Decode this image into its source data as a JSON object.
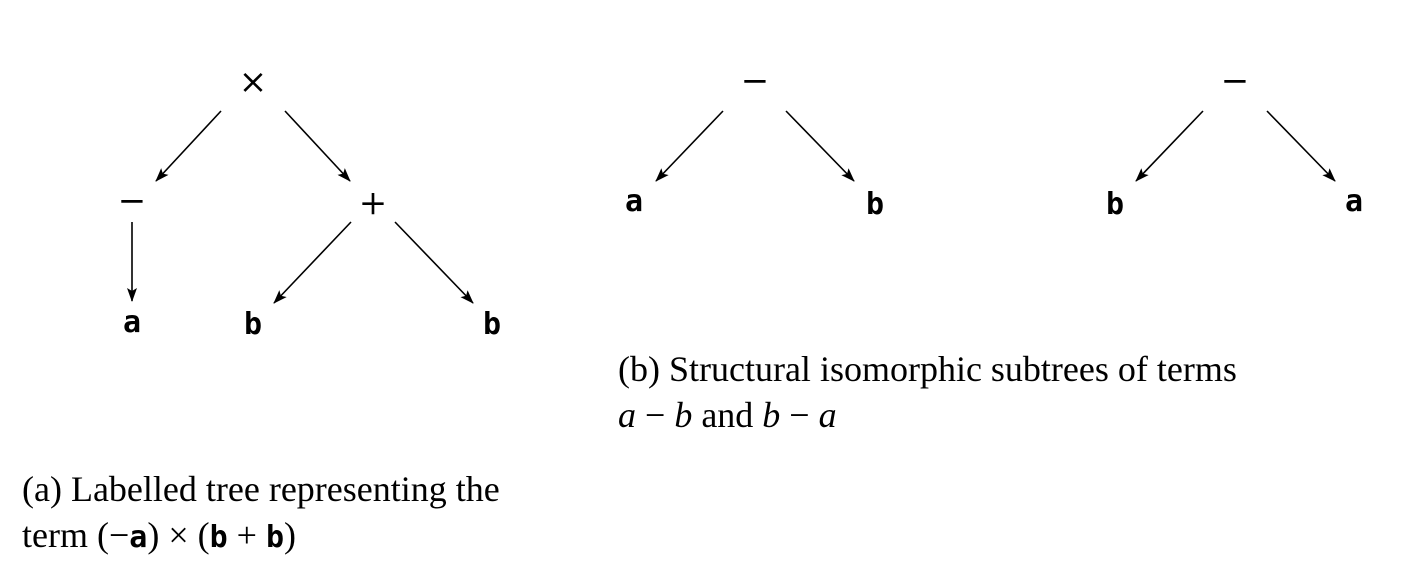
{
  "figure_a": {
    "nodes": [
      {
        "id": "times",
        "label": "×",
        "kind": "op"
      },
      {
        "id": "neg",
        "label": "−",
        "kind": "op"
      },
      {
        "id": "plus",
        "label": "+",
        "kind": "op"
      },
      {
        "id": "a1",
        "label": "a",
        "kind": "var"
      },
      {
        "id": "b1",
        "label": "b",
        "kind": "var"
      },
      {
        "id": "b2",
        "label": "b",
        "kind": "var"
      }
    ],
    "edges": [
      [
        "times",
        "neg"
      ],
      [
        "times",
        "plus"
      ],
      [
        "neg",
        "a1"
      ],
      [
        "plus",
        "b1"
      ],
      [
        "plus",
        "b2"
      ]
    ],
    "caption": {
      "line1": "(a) Labelled tree representing the",
      "line2_prefix": "term (−",
      "var_a": "a",
      "mid": ") × (",
      "var_b1": "b",
      "plus": " + ",
      "var_b2": "b",
      "close": ")"
    }
  },
  "figure_b": {
    "tree1": {
      "nodes": [
        {
          "id": "m1",
          "label": "−",
          "kind": "op"
        },
        {
          "id": "ta",
          "label": "a",
          "kind": "var"
        },
        {
          "id": "tb",
          "label": "b",
          "kind": "var"
        }
      ],
      "edges": [
        [
          "m1",
          "ta"
        ],
        [
          "m1",
          "tb"
        ]
      ]
    },
    "tree2": {
      "nodes": [
        {
          "id": "m2",
          "label": "−",
          "kind": "op"
        },
        {
          "id": "ub",
          "label": "b",
          "kind": "var"
        },
        {
          "id": "ua",
          "label": "a",
          "kind": "var"
        }
      ],
      "edges": [
        [
          "m2",
          "ub"
        ],
        [
          "m2",
          "ua"
        ]
      ]
    },
    "caption": {
      "line1": "(b) Structural isomorphic subtrees of terms",
      "t1_a": "a",
      "minus1": " − ",
      "t1_b": "b",
      "and": " and ",
      "t2_b": "b",
      "minus2": " − ",
      "t2_a": "a"
    }
  }
}
